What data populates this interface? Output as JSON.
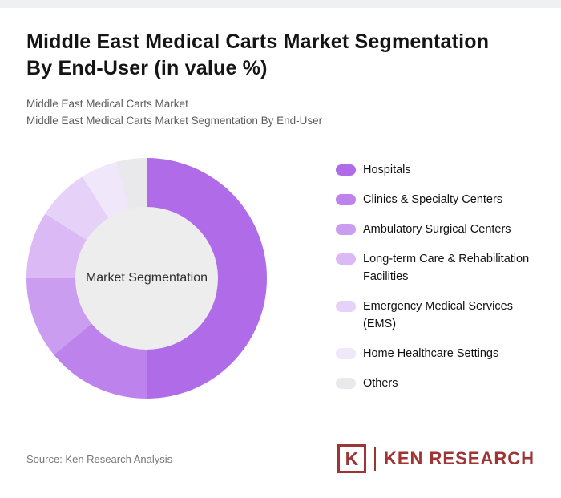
{
  "header": {
    "title": "Middle East Medical Carts Market Segmentation By End-User (in value %)",
    "subtitle_line1": "Middle East Medical Carts Market",
    "subtitle_line2": "Middle East Medical Carts Market Segmentation By End-User"
  },
  "chart_data": {
    "type": "pie",
    "donut": true,
    "title": "Middle East Medical Carts Market Segmentation By End-User (in value %)",
    "center_label": "Market Segmentation",
    "legend_position": "right",
    "start_angle_deg": 0,
    "categories": [
      "Hospitals",
      "Clinics & Specialty Centers",
      "Ambulatory Surgical Centers",
      "Long-term Care & Rehabilitation Facilities",
      "Emergency Medical Services (EMS)",
      "Home Healthcare Settings",
      "Others"
    ],
    "values": [
      50,
      14,
      11,
      9,
      7,
      5,
      4
    ],
    "colors": [
      "#b06ce8",
      "#bd82ec",
      "#cb9df0",
      "#dab9f4",
      "#e6d2f8",
      "#f1e7fb",
      "#e9e9ec"
    ],
    "hole_color": "#ededed"
  },
  "footer": {
    "source": "Source: Ken Research Analysis",
    "logo_initial": "K",
    "logo_text": "KEN RESEARCH",
    "brand_color": "#9e3434"
  }
}
